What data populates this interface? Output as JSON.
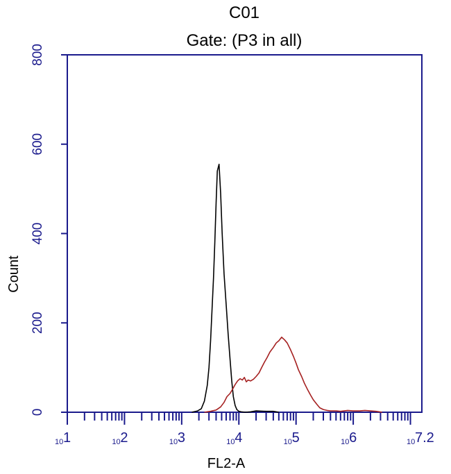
{
  "colors": {
    "axis": "#1a1a8c",
    "control_series": "#000000",
    "sample_series": "#a52020"
  },
  "chart_data": {
    "type": "line",
    "title": "C01",
    "subtitle": "Gate: (P3 in all)",
    "xlabel": "FL2-A",
    "ylabel": "Count",
    "xscale": "log",
    "xlim": [
      10,
      15848932
    ],
    "ylim": [
      0,
      800
    ],
    "yticks": [
      {
        "value": 0,
        "label": "0"
      },
      {
        "value": 200,
        "label": "200"
      },
      {
        "value": 400,
        "label": "400"
      },
      {
        "value": 600,
        "label": "600"
      },
      {
        "value": 800,
        "label": "800"
      }
    ],
    "xticks": [
      {
        "value": 10,
        "base": "10",
        "exp": "1"
      },
      {
        "value": 100,
        "base": "10",
        "exp": "2"
      },
      {
        "value": 1000,
        "base": "10",
        "exp": "3"
      },
      {
        "value": 10000,
        "base": "10",
        "exp": "4"
      },
      {
        "value": 100000,
        "base": "10",
        "exp": "5"
      },
      {
        "value": 1000000,
        "base": "10",
        "exp": "6"
      },
      {
        "value": 15848932,
        "base": "10",
        "exp": "7.2"
      }
    ],
    "grid": false,
    "series": [
      {
        "color": "#000000",
        "x": [
          1500,
          1900,
          2200,
          2500,
          2800,
          3000,
          3200,
          3400,
          3600,
          3800,
          4000,
          4200,
          4500,
          4800,
          5100,
          5500,
          6000,
          6500,
          7000,
          7500,
          8000,
          8600,
          9200,
          10000,
          11000,
          13000,
          16000,
          20000,
          30000,
          40000,
          50000
        ],
        "y": [
          0,
          3,
          8,
          25,
          60,
          100,
          160,
          230,
          300,
          380,
          470,
          540,
          555,
          490,
          400,
          310,
          240,
          175,
          120,
          70,
          35,
          15,
          6,
          2,
          1,
          0,
          1,
          3,
          2,
          2,
          0
        ]
      },
      {
        "color": "#a52020",
        "x": [
          2500,
          3200,
          4000,
          4800,
          5500,
          6200,
          7000,
          7800,
          8600,
          9500,
          10500,
          11500,
          12500,
          13500,
          14500,
          16000,
          18000,
          20000,
          22500,
          25000,
          28000,
          31000,
          35000,
          40000,
          45000,
          50000,
          56000,
          63000,
          70000,
          80000,
          90000,
          100000,
          110000,
          125000,
          140000,
          160000,
          180000,
          200000,
          230000,
          260000,
          300000,
          350000,
          400000,
          500000,
          600000,
          800000,
          1000000,
          1300000,
          1600000,
          2000000,
          2500000,
          3200000
        ],
        "y": [
          0,
          2,
          5,
          12,
          22,
          35,
          42,
          52,
          62,
          70,
          75,
          72,
          78,
          68,
          72,
          70,
          74,
          80,
          88,
          100,
          112,
          122,
          135,
          145,
          155,
          160,
          168,
          162,
          155,
          140,
          125,
          110,
          95,
          80,
          65,
          50,
          38,
          28,
          18,
          10,
          6,
          4,
          3,
          3,
          2,
          4,
          3,
          3,
          4,
          3,
          2,
          0
        ]
      }
    ]
  }
}
